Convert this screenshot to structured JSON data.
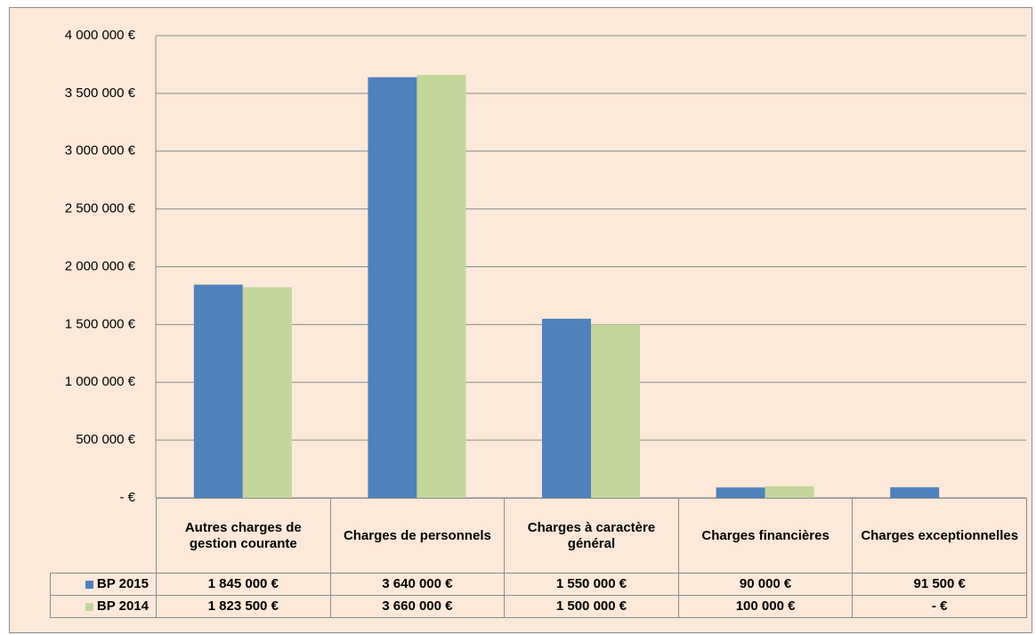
{
  "chart_data": {
    "type": "bar",
    "categories": [
      "Autres charges de gestion courante",
      "Charges de personnels",
      "Charges à caractère général",
      "Charges financières",
      "Charges exceptionnelles"
    ],
    "series": [
      {
        "name": "BP 2015",
        "color": "#4f81bd",
        "values": [
          1845000,
          3640000,
          1550000,
          90000,
          91500
        ],
        "value_labels": [
          "1 845 000 €",
          "3 640 000 €",
          "1 550 000 €",
          "90 000 €",
          "91 500 €"
        ]
      },
      {
        "name": "BP 2014",
        "color": "#c3d69b",
        "values": [
          1823500,
          3660000,
          1500000,
          100000,
          0
        ],
        "value_labels": [
          "1 823 500 €",
          "3 660 000 €",
          "1 500 000 €",
          "100 000 €",
          "-  €"
        ]
      }
    ],
    "ylim": [
      0,
      4000000
    ],
    "yticks": [
      {
        "value": 0,
        "label": "-  €"
      },
      {
        "value": 500000,
        "label": "500 000 €"
      },
      {
        "value": 1000000,
        "label": "1 000 000 €"
      },
      {
        "value": 1500000,
        "label": "1 500 000 €"
      },
      {
        "value": 2000000,
        "label": "2 000 000 €"
      },
      {
        "value": 2500000,
        "label": "2 500 000 €"
      },
      {
        "value": 3000000,
        "label": "3 000 000 €"
      },
      {
        "value": 3500000,
        "label": "3 500 000 €"
      },
      {
        "value": 4000000,
        "label": "4 000 000 €"
      }
    ],
    "grid": true
  }
}
